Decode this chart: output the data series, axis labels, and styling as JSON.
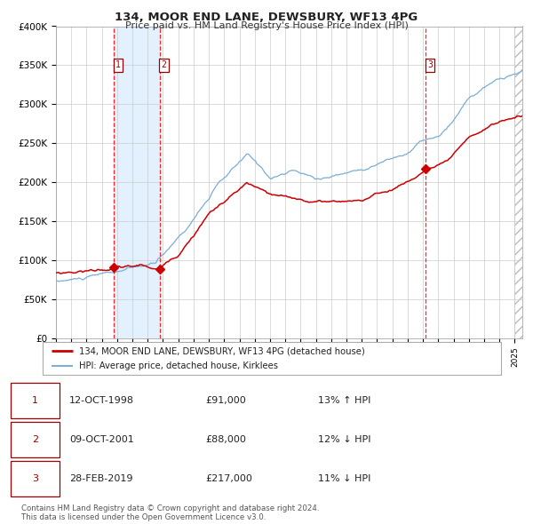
{
  "title": "134, MOOR END LANE, DEWSBURY, WF13 4PG",
  "subtitle": "Price paid vs. HM Land Registry's House Price Index (HPI)",
  "ylim": [
    0,
    400000
  ],
  "yticks": [
    0,
    50000,
    100000,
    150000,
    200000,
    250000,
    300000,
    350000,
    400000
  ],
  "ytick_labels": [
    "£0",
    "£50K",
    "£100K",
    "£150K",
    "£200K",
    "£250K",
    "£300K",
    "£350K",
    "£400K"
  ],
  "xlim_start": 1995.0,
  "xlim_end": 2025.5,
  "hpi_color": "#7aadd4",
  "price_color": "#cc0000",
  "bg_color": "#ffffff",
  "grid_color": "#cccccc",
  "transaction_dates": [
    1998.78,
    2001.77,
    2019.16
  ],
  "transaction_prices": [
    91000,
    88000,
    217000
  ],
  "transaction_labels": [
    "1",
    "2",
    "3"
  ],
  "shade_between_color": "#ddeeff",
  "hatch_start": 2025.0,
  "table_rows": [
    [
      "1",
      "12-OCT-1998",
      "£91,000",
      "13% ↑ HPI"
    ],
    [
      "2",
      "09-OCT-2001",
      "£88,000",
      "12% ↓ HPI"
    ],
    [
      "3",
      "28-FEB-2019",
      "£217,000",
      "11% ↓ HPI"
    ]
  ],
  "legend_entries": [
    "134, MOOR END LANE, DEWSBURY, WF13 4PG (detached house)",
    "HPI: Average price, detached house, Kirklees"
  ],
  "footnote": "Contains HM Land Registry data © Crown copyright and database right 2024.\nThis data is licensed under the Open Government Licence v3.0."
}
